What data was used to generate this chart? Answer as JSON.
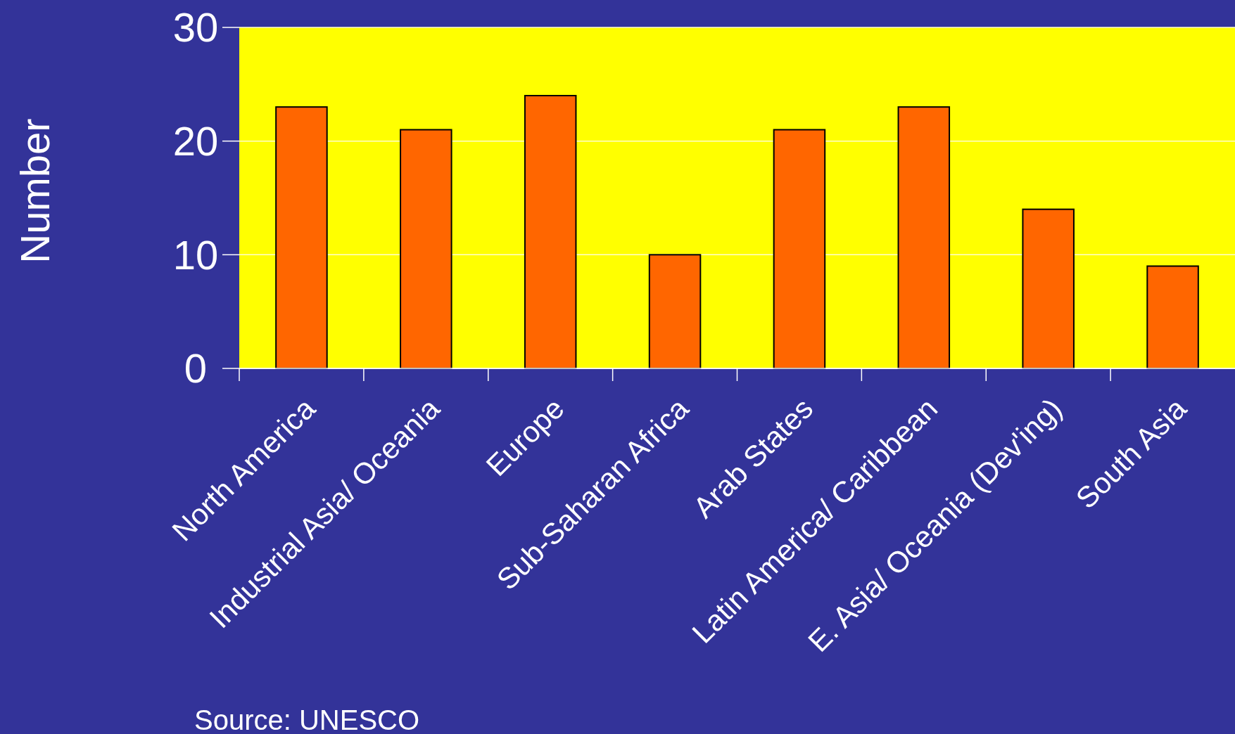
{
  "chart_data": {
    "type": "bar",
    "ylabel": "Number",
    "categories": [
      "North America",
      "Industrial Asia/ Oceania",
      "Europe",
      "Sub-Saharan Africa",
      "Arab States",
      "Latin America/ Caribbean",
      "E. Asia/ Oceania (Dev'ing)",
      "South Asia"
    ],
    "values": [
      23,
      21,
      24,
      10,
      21,
      23,
      14,
      9
    ],
    "color": "#ff6600",
    "ylim": [
      0,
      30
    ],
    "yticks": [
      0,
      10,
      20,
      30
    ],
    "grid": "y",
    "annotations": [
      "Source:  UNESCO"
    ]
  }
}
